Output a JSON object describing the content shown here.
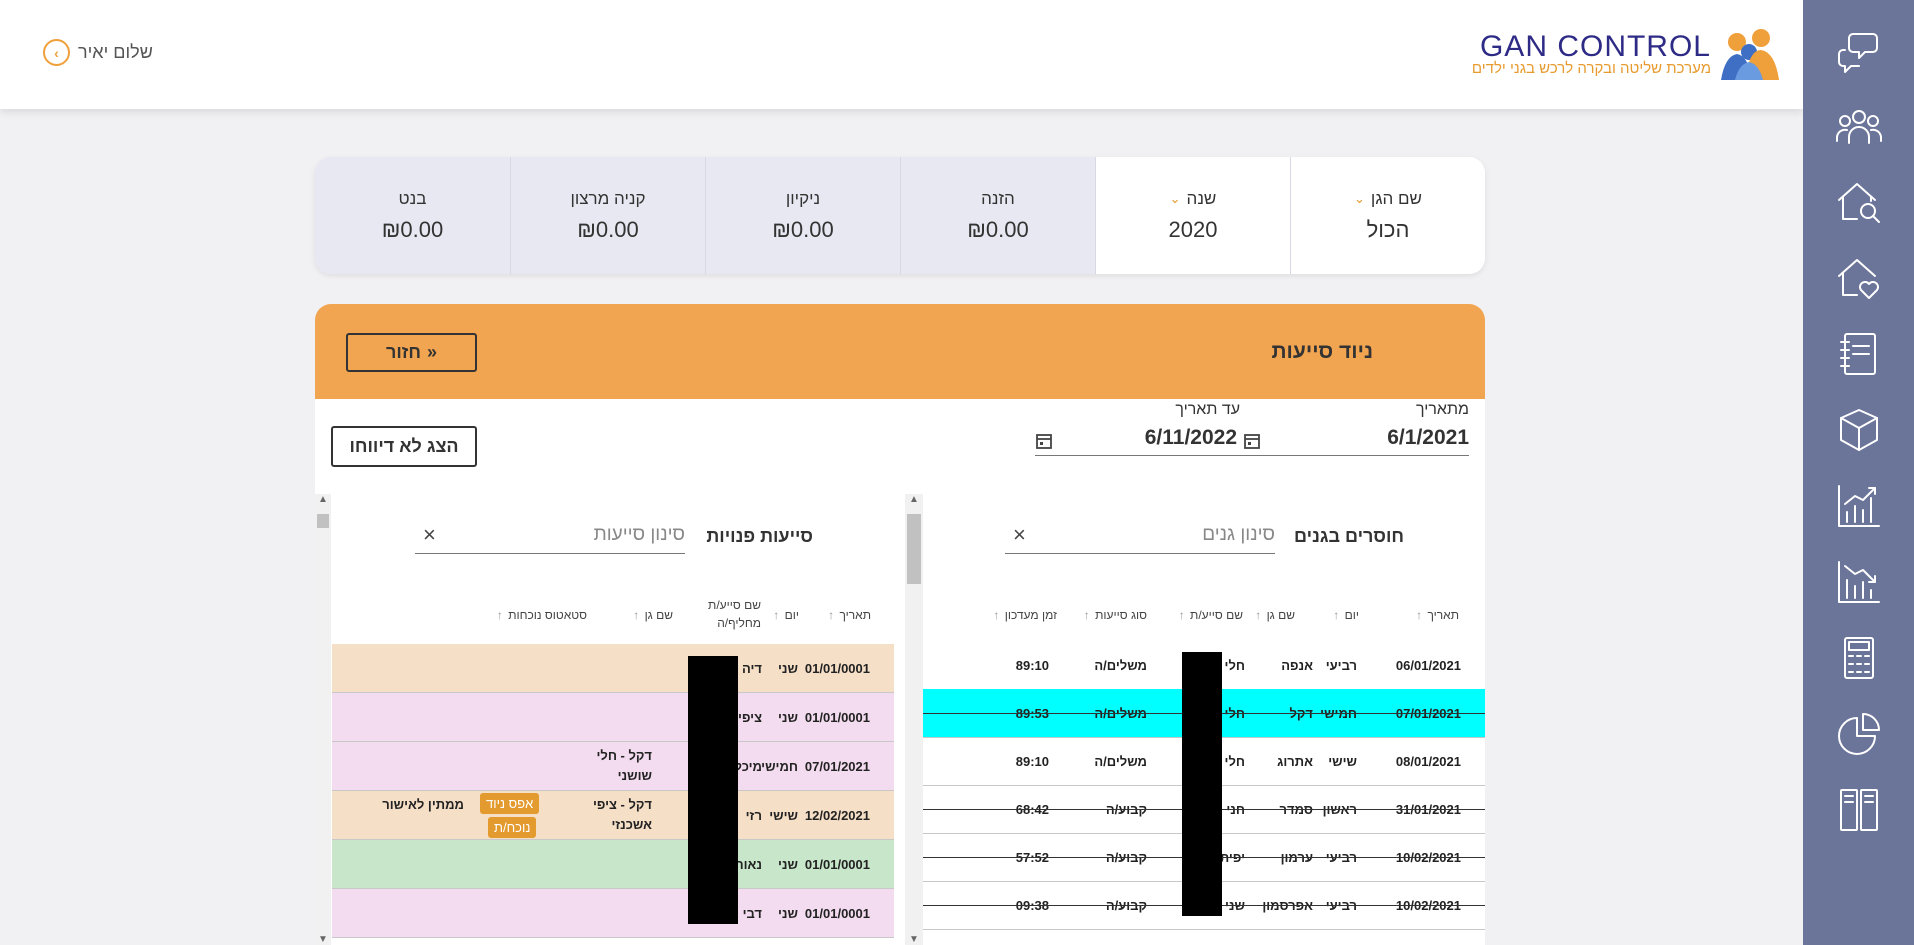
{
  "header": {
    "logo_title": "GAN CONTROL",
    "logo_subtitle": "מערכת שליטה ובקרה לרכש בגני ילדים",
    "greeting": "שלום יאיר"
  },
  "sidebar": {
    "items": [
      {
        "icon": "chat-bubbles-icon"
      },
      {
        "icon": "people-group-icon"
      },
      {
        "icon": "house-search-icon"
      },
      {
        "icon": "house-heart-icon"
      },
      {
        "icon": "notebook-icon"
      },
      {
        "icon": "box-icon"
      },
      {
        "icon": "chart-up-icon"
      },
      {
        "icon": "chart-down-icon"
      },
      {
        "icon": "calculator-icon"
      },
      {
        "icon": "pie-chart-icon"
      },
      {
        "icon": "book-icon"
      }
    ]
  },
  "summary": {
    "kindergarten": {
      "label": "שם הגן",
      "value": "הכול"
    },
    "year": {
      "label": "שנה",
      "value": "2020"
    },
    "food": {
      "label": "הזנה",
      "value": "₪0.00"
    },
    "cleaning": {
      "label": "ניקיון",
      "value": "₪0.00"
    },
    "marzan": {
      "label": "קניה מרצון",
      "value": "₪0.00"
    },
    "benet": {
      "label": "בנט",
      "value": "₪0.00"
    }
  },
  "main": {
    "title": "ניוד סייעות",
    "back_label": "חזור",
    "from_date_label": "מתאריך",
    "from_date": "6/1/2021",
    "to_date_label": "עד תאריך",
    "to_date": "6/11/2022",
    "show_unreported_label": "הצג לא דיווחו"
  },
  "missing_panel": {
    "title": "חוסרים בגנים",
    "filter_placeholder": "סינון גנים",
    "columns": [
      "תאריך",
      "יום",
      "שם גן",
      "שם סייע/ת",
      "סוג סייעות",
      "זמן מעדכון"
    ],
    "rows": [
      {
        "date": "06/01/2021",
        "day": "רביעי",
        "gan": "אנפה",
        "name": "חלי",
        "type": "משלים/ה",
        "time": "89:10",
        "highlight": false,
        "strike": false
      },
      {
        "date": "07/01/2021",
        "day": "חמישי",
        "gan": "דקל",
        "name": "חלי",
        "type": "משלים/ה",
        "time": "89:53",
        "highlight": true,
        "strike": true
      },
      {
        "date": "08/01/2021",
        "day": "שישי",
        "gan": "אתרוג",
        "name": "חלי",
        "type": "משלים/ה",
        "time": "89:10",
        "highlight": false,
        "strike": false
      },
      {
        "date": "31/01/2021",
        "day": "ראשון",
        "gan": "סמדר",
        "name": "חני",
        "type": "קבוע/ה",
        "time": "68:42",
        "highlight": false,
        "strike": true
      },
      {
        "date": "10/02/2021",
        "day": "רביעי",
        "gan": "ערמון",
        "name": "יפית",
        "type": "קבוע/ה",
        "time": "57:52",
        "highlight": false,
        "strike": true
      },
      {
        "date": "10/02/2021",
        "day": "רביעי",
        "gan": "אפרסמון",
        "name": "שני",
        "type": "קבוע/ה",
        "time": "09:38",
        "highlight": false,
        "strike": true
      }
    ]
  },
  "free_panel": {
    "title": "סייעות פנויות",
    "filter_placeholder": "סינון סייעות",
    "columns": [
      "תאריך",
      "יום",
      "שם סייע/ת מחליף/ה",
      "שם גן",
      "סטאטוס נוכחות"
    ],
    "rows": [
      {
        "date": "01/01/0001",
        "day": "שני",
        "name": "דיה",
        "gan": "",
        "gan2": "",
        "status": "",
        "color": "#f6dfc7"
      },
      {
        "date": "01/01/0001",
        "day": "שני",
        "name": "ציפי",
        "gan": "",
        "gan2": "",
        "status": "",
        "color": "#f3dcef"
      },
      {
        "date": "07/01/2021",
        "day": "חמישי",
        "name": "מיכל",
        "gan": "דקל - חלי",
        "gan2": "שושני",
        "status": "",
        "color": "#f3dcef"
      },
      {
        "date": "12/02/2021",
        "day": "שישי",
        "name": "רזי",
        "gan": "דקל - ציפי",
        "gan2": "אשכנזי",
        "status": "ממתין לאישור",
        "color": "#f6dfc7"
      },
      {
        "date": "01/01/0001",
        "day": "שני",
        "name": "נאור",
        "gan": "",
        "gan2": "",
        "status": "",
        "color": "#c8e6c9"
      },
      {
        "date": "01/01/0001",
        "day": "שני",
        "name": "דבי",
        "gan": "",
        "gan2": "",
        "status": "",
        "color": "#f3dcef"
      }
    ],
    "cancel_move_label": "אפס ניוד",
    "attendance_label": "נוכח/ת"
  },
  "colors": {
    "sidebar": "#6b7499",
    "accent": "#f2a551",
    "highlight": "#00ffff"
  }
}
